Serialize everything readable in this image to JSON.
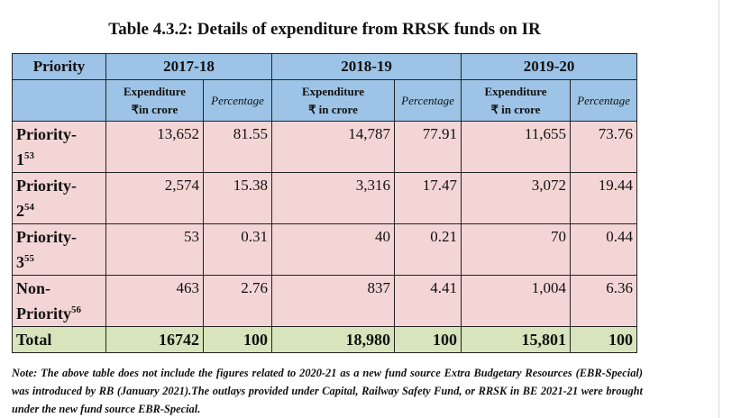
{
  "title": "Table 4.3.2: Details of expenditure from RRSK funds on IR",
  "header": {
    "col0": "Priority",
    "years": [
      "2017-18",
      "2018-19",
      "2019-20"
    ]
  },
  "subheader": {
    "y1": {
      "exp_line1": "Expenditure",
      "exp_line2": "₹in crore",
      "pct": "Percentage"
    },
    "y2": {
      "exp_line1": "Expenditure",
      "exp_line2": "₹ in crore",
      "pct": "Percentage"
    },
    "y3": {
      "exp_line1": "Expenditure",
      "exp_line2": "₹ in crore",
      "pct": "Percentage"
    }
  },
  "rows": [
    {
      "label_line1": "Priority-",
      "label_line2": "1",
      "footnote": "53",
      "v": [
        "13,652",
        "81.55",
        "14,787",
        "77.91",
        "11,655",
        "73.76"
      ]
    },
    {
      "label_line1": "Priority-",
      "label_line2": "2",
      "footnote": "54",
      "v": [
        "2,574",
        "15.38",
        "3,316",
        "17.47",
        "3,072",
        "19.44"
      ]
    },
    {
      "label_line1": "Priority-",
      "label_line2": "3",
      "footnote": "55",
      "v": [
        "53",
        "0.31",
        "40",
        "0.21",
        "70",
        "0.44"
      ]
    },
    {
      "label_line1": "Non-",
      "label_line2": "Priority",
      "footnote": "56",
      "v": [
        "463",
        "2.76",
        "837",
        "4.41",
        "1,004",
        "6.36"
      ]
    }
  ],
  "total": {
    "label": "Total",
    "v": [
      "16742",
      "100",
      "18,980",
      "100",
      "15,801",
      "100"
    ]
  },
  "note": "Note: The above table does not include the figures related to 2020-21 as a new fund source Extra Budgetary Resources (EBR-Special) was introduced by RB (January 2021).The outlays provided under Capital, Railway Safety Fund, or RRSK in BE 2021-21 were brought under the new fund source EBR-Special."
}
